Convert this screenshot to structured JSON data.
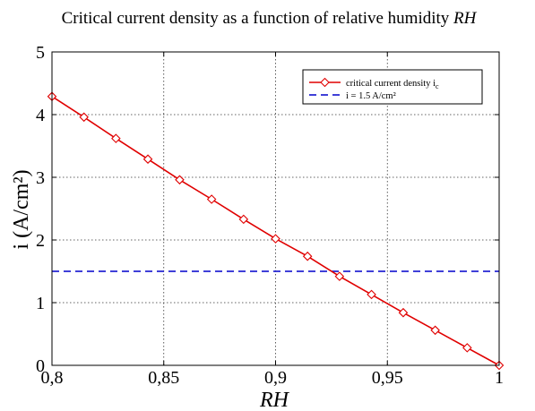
{
  "chart_data": {
    "type": "line",
    "title": "Critical current density as a function of relative humidity",
    "title_italic": "RH",
    "xlabel": "RH",
    "ylabel": "i (A/cm²)",
    "xlim": [
      0.8,
      1.0
    ],
    "ylim": [
      0,
      5
    ],
    "x_ticks": [
      "0,8",
      "0,85",
      "0,9",
      "0,95",
      "1"
    ],
    "y_ticks": [
      "0",
      "1",
      "2",
      "3",
      "4",
      "5"
    ],
    "grid": true,
    "legend_position": "top-right",
    "series": [
      {
        "name": "critical current density i",
        "name_subscript": "c",
        "color": "#e00000",
        "marker": "diamond",
        "x": [
          0.8,
          0.8143,
          0.8286,
          0.8429,
          0.8571,
          0.8714,
          0.8857,
          0.9,
          0.9143,
          0.9286,
          0.9429,
          0.9571,
          0.9714,
          0.9857,
          1.0
        ],
        "y": [
          4.29,
          3.96,
          3.62,
          3.29,
          2.96,
          2.65,
          2.33,
          2.02,
          1.74,
          1.42,
          1.13,
          0.84,
          0.56,
          0.28,
          0.0
        ]
      },
      {
        "name": "i = 1.5 A/cm²",
        "color": "#0000cc",
        "style": "dashed",
        "x": [
          0.8,
          1.0
        ],
        "y": [
          1.5,
          1.5
        ]
      }
    ]
  }
}
